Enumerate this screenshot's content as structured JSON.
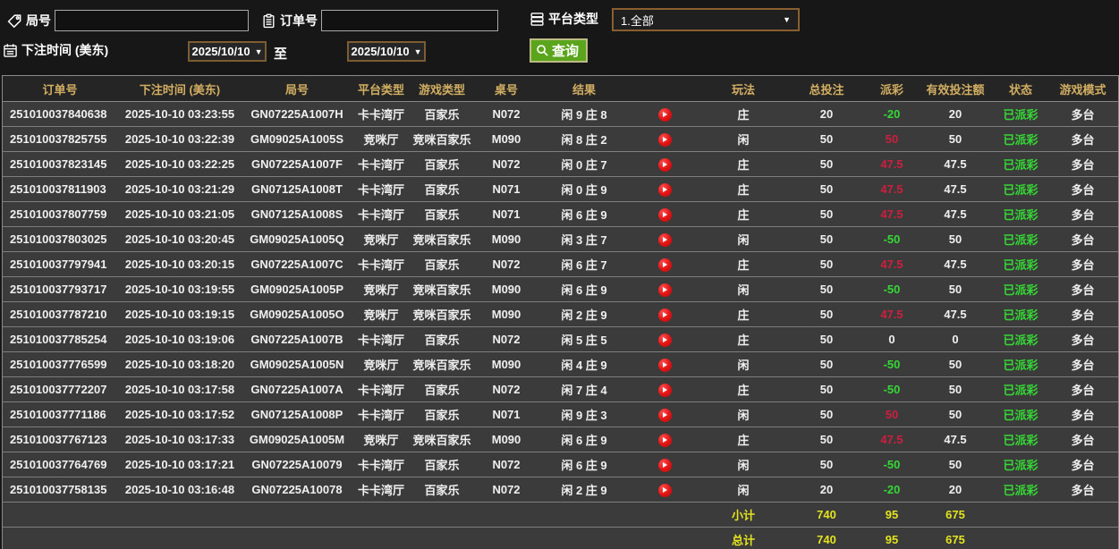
{
  "filters": {
    "round_label": "局号",
    "round_value": "",
    "order_label": "订单号",
    "order_value": "",
    "platform_label": "平台类型",
    "platform_value": "1.全部",
    "bet_time_label": "下注时间 (美东)",
    "date_from": "2025/10/10",
    "date_to": "2025/10/10",
    "to_label": "至",
    "query_label": "查询"
  },
  "colors": {
    "header_gold": "#d2ae62",
    "win_red": "#cf1e3e",
    "loss_green": "#35d835",
    "status_green": "#35d835",
    "total_yellow": "#e3e31e",
    "button_green": "#5aa51b"
  },
  "table": {
    "columns": [
      "订单号",
      "下注时间 (美东)",
      "局号",
      "平台类型",
      "游戏类型",
      "桌号",
      "结果",
      "",
      "玩法",
      "总投注",
      "派彩",
      "有效投注额",
      "状态",
      "游戏模式"
    ],
    "rows": [
      {
        "order": "251010037840638",
        "time": "2025-10-10 03:23:55",
        "round": "GN07225A1007H",
        "platform": "卡卡湾厅",
        "game": "百家乐",
        "table_no": "N072",
        "result": "闲 9 庄 8",
        "play": "庄",
        "total_bet": "20",
        "payout": "-20",
        "payout_class": "loss",
        "valid_bet": "20",
        "status": "已派彩",
        "mode": "多台"
      },
      {
        "order": "251010037825755",
        "time": "2025-10-10 03:22:39",
        "round": "GM09025A1005S",
        "platform": "竞咪厅",
        "game": "竞咪百家乐",
        "table_no": "M090",
        "result": "闲 8 庄 2",
        "play": "闲",
        "total_bet": "50",
        "payout": "50",
        "payout_class": "win",
        "valid_bet": "50",
        "status": "已派彩",
        "mode": "多台"
      },
      {
        "order": "251010037823145",
        "time": "2025-10-10 03:22:25",
        "round": "GN07225A1007F",
        "platform": "卡卡湾厅",
        "game": "百家乐",
        "table_no": "N072",
        "result": "闲 0 庄 7",
        "play": "庄",
        "total_bet": "50",
        "payout": "47.5",
        "payout_class": "win",
        "valid_bet": "47.5",
        "status": "已派彩",
        "mode": "多台"
      },
      {
        "order": "251010037811903",
        "time": "2025-10-10 03:21:29",
        "round": "GN07125A1008T",
        "platform": "卡卡湾厅",
        "game": "百家乐",
        "table_no": "N071",
        "result": "闲 0 庄 9",
        "play": "庄",
        "total_bet": "50",
        "payout": "47.5",
        "payout_class": "win",
        "valid_bet": "47.5",
        "status": "已派彩",
        "mode": "多台"
      },
      {
        "order": "251010037807759",
        "time": "2025-10-10 03:21:05",
        "round": "GN07125A1008S",
        "platform": "卡卡湾厅",
        "game": "百家乐",
        "table_no": "N071",
        "result": "闲 6 庄 9",
        "play": "庄",
        "total_bet": "50",
        "payout": "47.5",
        "payout_class": "win",
        "valid_bet": "47.5",
        "status": "已派彩",
        "mode": "多台"
      },
      {
        "order": "251010037803025",
        "time": "2025-10-10 03:20:45",
        "round": "GM09025A1005Q",
        "platform": "竞咪厅",
        "game": "竞咪百家乐",
        "table_no": "M090",
        "result": "闲 3 庄 7",
        "play": "闲",
        "total_bet": "50",
        "payout": "-50",
        "payout_class": "loss",
        "valid_bet": "50",
        "status": "已派彩",
        "mode": "多台"
      },
      {
        "order": "251010037797941",
        "time": "2025-10-10 03:20:15",
        "round": "GN07225A1007C",
        "platform": "卡卡湾厅",
        "game": "百家乐",
        "table_no": "N072",
        "result": "闲 6 庄 7",
        "play": "庄",
        "total_bet": "50",
        "payout": "47.5",
        "payout_class": "win",
        "valid_bet": "47.5",
        "status": "已派彩",
        "mode": "多台"
      },
      {
        "order": "251010037793717",
        "time": "2025-10-10 03:19:55",
        "round": "GM09025A1005P",
        "platform": "竞咪厅",
        "game": "竞咪百家乐",
        "table_no": "M090",
        "result": "闲 6 庄 9",
        "play": "闲",
        "total_bet": "50",
        "payout": "-50",
        "payout_class": "loss",
        "valid_bet": "50",
        "status": "已派彩",
        "mode": "多台"
      },
      {
        "order": "251010037787210",
        "time": "2025-10-10 03:19:15",
        "round": "GM09025A1005O",
        "platform": "竞咪厅",
        "game": "竞咪百家乐",
        "table_no": "M090",
        "result": "闲 2 庄 9",
        "play": "庄",
        "total_bet": "50",
        "payout": "47.5",
        "payout_class": "win",
        "valid_bet": "47.5",
        "status": "已派彩",
        "mode": "多台"
      },
      {
        "order": "251010037785254",
        "time": "2025-10-10 03:19:06",
        "round": "GN07225A1007B",
        "platform": "卡卡湾厅",
        "game": "百家乐",
        "table_no": "N072",
        "result": "闲 5 庄 5",
        "play": "庄",
        "total_bet": "50",
        "payout": "0",
        "payout_class": "zero",
        "valid_bet": "0",
        "status": "已派彩",
        "mode": "多台"
      },
      {
        "order": "251010037776599",
        "time": "2025-10-10 03:18:20",
        "round": "GM09025A1005N",
        "platform": "竞咪厅",
        "game": "竞咪百家乐",
        "table_no": "M090",
        "result": "闲 4 庄 9",
        "play": "闲",
        "total_bet": "50",
        "payout": "-50",
        "payout_class": "loss",
        "valid_bet": "50",
        "status": "已派彩",
        "mode": "多台"
      },
      {
        "order": "251010037772207",
        "time": "2025-10-10 03:17:58",
        "round": "GN07225A1007A",
        "platform": "卡卡湾厅",
        "game": "百家乐",
        "table_no": "N072",
        "result": "闲 7 庄 4",
        "play": "庄",
        "total_bet": "50",
        "payout": "-50",
        "payout_class": "loss",
        "valid_bet": "50",
        "status": "已派彩",
        "mode": "多台"
      },
      {
        "order": "251010037771186",
        "time": "2025-10-10 03:17:52",
        "round": "GN07125A1008P",
        "platform": "卡卡湾厅",
        "game": "百家乐",
        "table_no": "N071",
        "result": "闲 9 庄 3",
        "play": "闲",
        "total_bet": "50",
        "payout": "50",
        "payout_class": "win",
        "valid_bet": "50",
        "status": "已派彩",
        "mode": "多台"
      },
      {
        "order": "251010037767123",
        "time": "2025-10-10 03:17:33",
        "round": "GM09025A1005M",
        "platform": "竞咪厅",
        "game": "竞咪百家乐",
        "table_no": "M090",
        "result": "闲 6 庄 9",
        "play": "庄",
        "total_bet": "50",
        "payout": "47.5",
        "payout_class": "win",
        "valid_bet": "47.5",
        "status": "已派彩",
        "mode": "多台"
      },
      {
        "order": "251010037764769",
        "time": "2025-10-10 03:17:21",
        "round": "GN07225A10079",
        "platform": "卡卡湾厅",
        "game": "百家乐",
        "table_no": "N072",
        "result": "闲 6 庄 9",
        "play": "闲",
        "total_bet": "50",
        "payout": "-50",
        "payout_class": "loss",
        "valid_bet": "50",
        "status": "已派彩",
        "mode": "多台"
      },
      {
        "order": "251010037758135",
        "time": "2025-10-10 03:16:48",
        "round": "GN07225A10078",
        "platform": "卡卡湾厅",
        "game": "百家乐",
        "table_no": "N072",
        "result": "闲 2 庄 9",
        "play": "闲",
        "total_bet": "20",
        "payout": "-20",
        "payout_class": "loss",
        "valid_bet": "20",
        "status": "已派彩",
        "mode": "多台"
      }
    ],
    "subtotal": {
      "label": "小计",
      "total_bet": "740",
      "payout": "95",
      "valid_bet": "675"
    },
    "total": {
      "label": "总计",
      "total_bet": "740",
      "payout": "95",
      "valid_bet": "675"
    }
  }
}
